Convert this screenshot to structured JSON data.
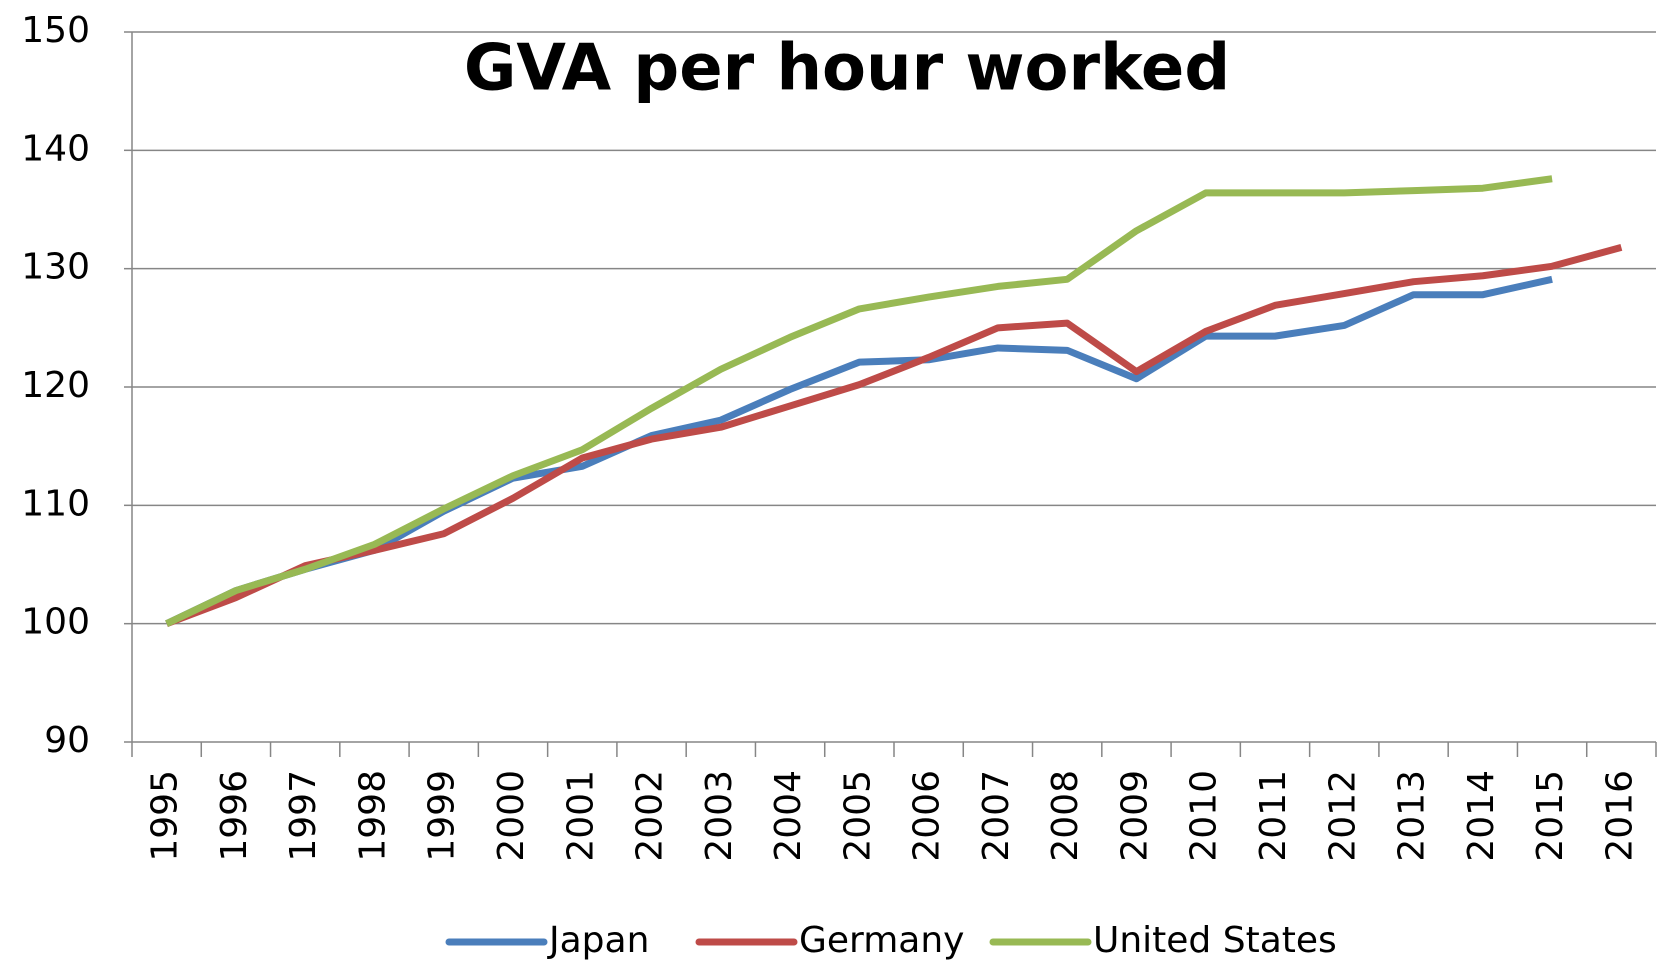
{
  "chart_data": {
    "type": "line",
    "title": "GVA per hour worked",
    "categories": [
      "1995",
      "1996",
      "1997",
      "1998",
      "1999",
      "2000",
      "2001",
      "2002",
      "2003",
      "2004",
      "2005",
      "2006",
      "2007",
      "2008",
      "2009",
      "2010",
      "2011",
      "2012",
      "2013",
      "2014",
      "2015",
      "2016"
    ],
    "series": [
      {
        "name": "Japan",
        "color": "#4a7ebb",
        "values": [
          100,
          102.8,
          104.6,
          106.2,
          109.5,
          112.3,
          113.3,
          115.9,
          117.2,
          119.8,
          122.1,
          122.3,
          123.3,
          123.1,
          120.7,
          124.3,
          124.3,
          125.2,
          127.8,
          127.8,
          129.1,
          null
        ]
      },
      {
        "name": "Germany",
        "color": "#be4b48",
        "values": [
          100,
          102.2,
          104.9,
          106.2,
          107.6,
          110.6,
          114.0,
          115.6,
          116.6,
          118.4,
          120.2,
          122.5,
          125.0,
          125.4,
          121.3,
          124.7,
          126.9,
          127.9,
          128.9,
          129.4,
          130.2,
          131.8
        ]
      },
      {
        "name": "United States",
        "color": "#98b954",
        "values": [
          100,
          102.8,
          104.6,
          106.7,
          109.7,
          112.5,
          114.7,
          118.2,
          121.5,
          124.2,
          126.6,
          127.6,
          128.5,
          129.1,
          133.2,
          136.4,
          136.4,
          136.4,
          136.6,
          136.8,
          137.6,
          null
        ]
      }
    ],
    "ylim": [
      90,
      150
    ],
    "yticks": [
      90,
      100,
      110,
      120,
      130,
      140,
      150
    ],
    "grid": true,
    "legend": "bottom"
  }
}
